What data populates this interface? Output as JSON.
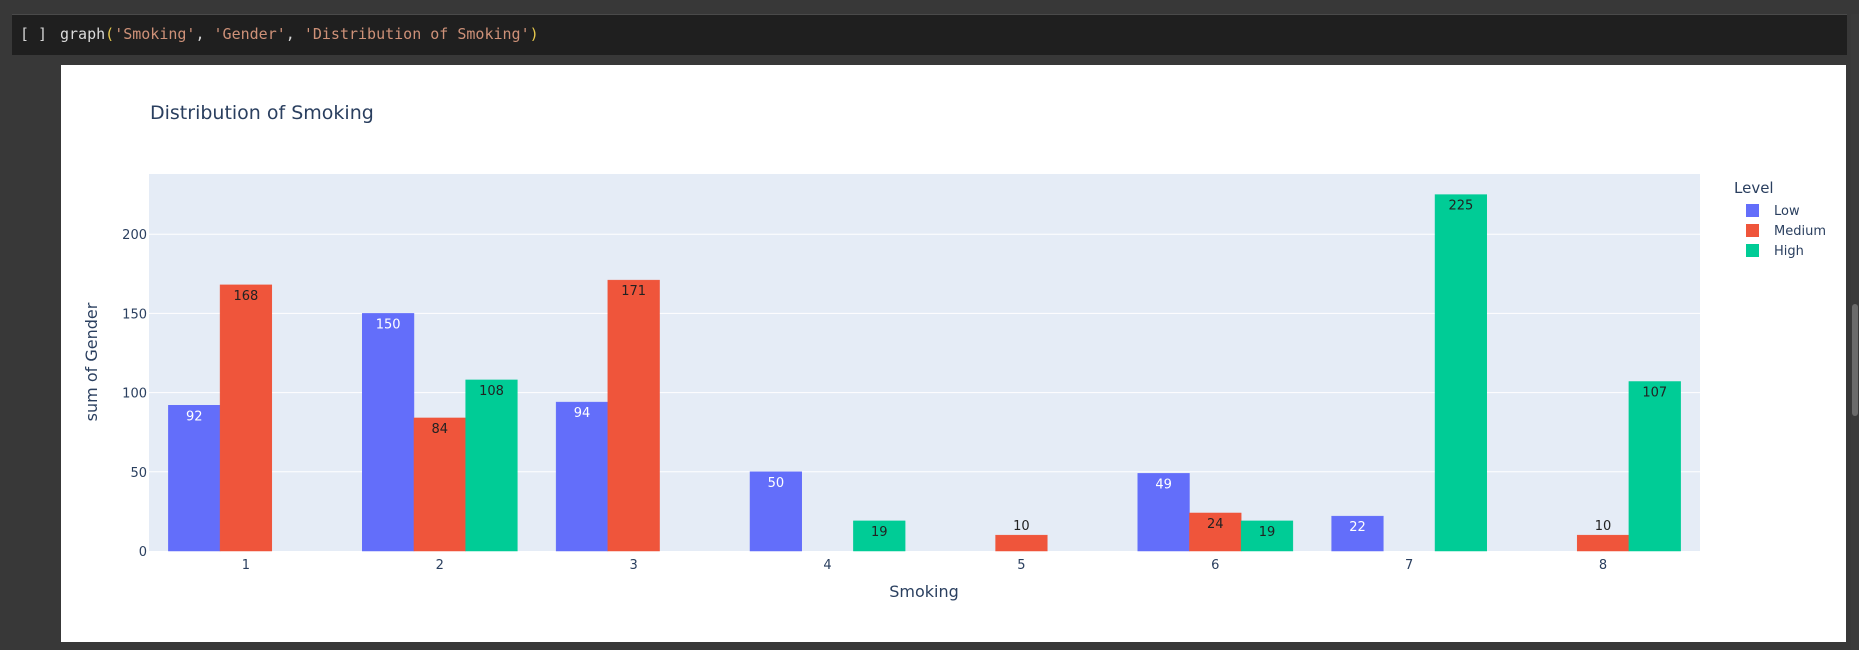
{
  "cell": {
    "prompt": "[ ]",
    "code": {
      "fn": "graph",
      "open_paren": "(",
      "arg1": "'Smoking'",
      "sep1": ", ",
      "arg2": "'Gender'",
      "sep2": ", ",
      "arg3": "'Distribution of Smoking'",
      "close_paren": ")"
    }
  },
  "colors": {
    "Low": "#636efa",
    "Medium": "#ef553b",
    "High": "#00cc96",
    "plot_bg": "#e5ecf6",
    "title": "#2a3f5f"
  },
  "chart_data": {
    "type": "bar",
    "barmode": "group",
    "title": "Distribution of Smoking",
    "xlabel": "Smoking",
    "ylabel": "sum of Gender",
    "categories": [
      "1",
      "2",
      "3",
      "4",
      "5",
      "6",
      "7",
      "8"
    ],
    "ylim": [
      0,
      238
    ],
    "yticks": [
      0,
      50,
      100,
      150,
      200
    ],
    "grid": true,
    "legend": {
      "title": "Level",
      "placement": "top-right, outside plot"
    },
    "series": [
      {
        "name": "Low",
        "values": [
          92,
          150,
          94,
          50,
          null,
          49,
          22,
          null
        ]
      },
      {
        "name": "Medium",
        "values": [
          168,
          84,
          171,
          null,
          10,
          24,
          null,
          10
        ]
      },
      {
        "name": "High",
        "values": [
          null,
          108,
          null,
          19,
          null,
          19,
          225,
          107
        ]
      }
    ]
  }
}
